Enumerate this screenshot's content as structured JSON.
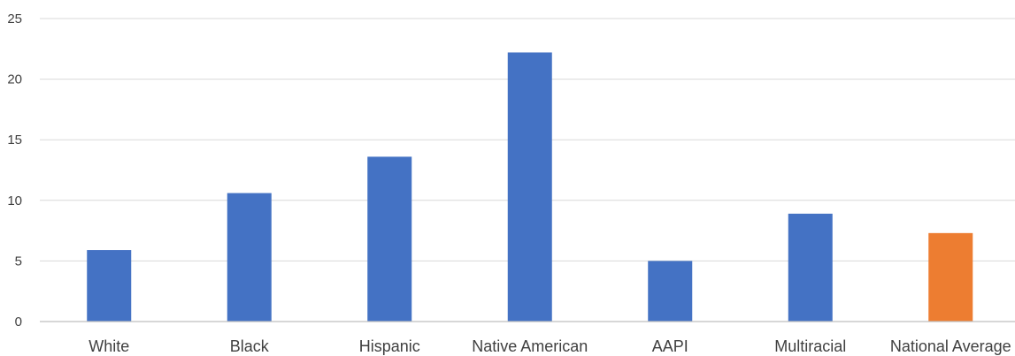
{
  "chart_data": {
    "type": "bar",
    "categories": [
      "White",
      "Black",
      "Hispanic",
      "Native American",
      "AAPI",
      "Multiracial",
      "National Average"
    ],
    "values": [
      5.9,
      10.6,
      13.6,
      22.2,
      5.0,
      8.9,
      7.3
    ],
    "bar_colors": [
      "#4472c4",
      "#4472c4",
      "#4472c4",
      "#4472c4",
      "#4472c4",
      "#4472c4",
      "#ed7d31"
    ],
    "ylim": [
      0,
      25
    ],
    "yticks": [
      0,
      5,
      10,
      15,
      20,
      25
    ],
    "grid": true,
    "legend": "none",
    "title": "",
    "xlabel": "",
    "ylabel": ""
  }
}
